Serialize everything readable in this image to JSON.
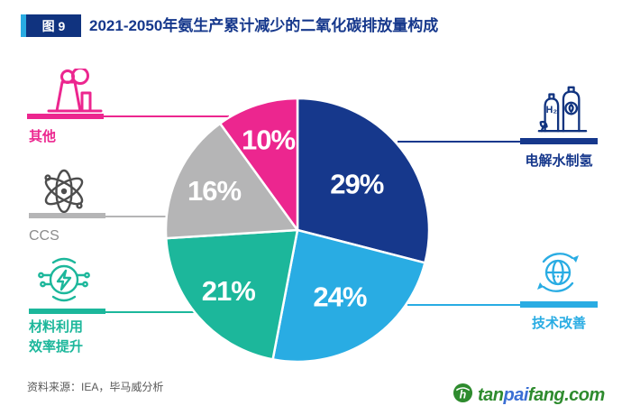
{
  "colors": {
    "navy": "#16388C",
    "navy-dark": "#10337F",
    "lightblue": "#29ACE3",
    "teal": "#1CB79B",
    "gray": "#B5B5B6",
    "gray-icon": "#4D4D4D",
    "gray-label": "#8C8C8C",
    "pink": "#EC268F",
    "accent": "#29ABE2",
    "source": "#595959",
    "logo-green": "#2E8B2E",
    "logo-blue": "#3B6FD4"
  },
  "header": {
    "badge": "图 9",
    "title": "2021-2050年氨生产累计减少的二氧化碳排放量构成"
  },
  "chart_data": {
    "type": "pie",
    "title": "2021-2050年氨生产累计减少的二氧化碳排放量构成",
    "units": "%",
    "start": "top",
    "clockwise": true,
    "legend_position": "sides",
    "slices": [
      {
        "id": "electrolysis",
        "label": "电解水制氢",
        "value": 29,
        "display": "29%",
        "color": "#16388C",
        "label_r": 0.57
      },
      {
        "id": "tech-improve",
        "label": "技术改善",
        "value": 24,
        "display": "24%",
        "color": "#29ACE3",
        "label_r": 0.6
      },
      {
        "id": "material-efficiency",
        "label": "材料利用效率提升",
        "value": 21,
        "display": "21%",
        "color": "#1CB79B",
        "label_r": 0.7
      },
      {
        "id": "ccs",
        "label": "CCS",
        "value": 16,
        "display": "16%",
        "color": "#B5B5B6",
        "label_r": 0.7
      },
      {
        "id": "other",
        "label": "其他",
        "value": 10,
        "display": "10%",
        "color": "#EC268F",
        "label_r": 0.72
      }
    ]
  },
  "legend": {
    "left": [
      {
        "icon": "factory-icon",
        "label": "其他"
      },
      {
        "icon": "atom-icon",
        "label": "CCS"
      },
      {
        "icon": "smart-energy-icon",
        "label": "材料利用\n效率提升"
      }
    ],
    "right": [
      {
        "icon": "hydrogen-cylinders-icon",
        "label": "电解水制氢"
      },
      {
        "icon": "globe-recycle-icon",
        "label": "技术改善"
      }
    ]
  },
  "icon_text": {
    "h2": "H₂"
  },
  "footer": {
    "source": "资料来源：IEA，毕马威分析"
  },
  "logo": {
    "parts": [
      {
        "text": "tan"
      },
      {
        "text": "pai"
      },
      {
        "text": "fang.com"
      }
    ]
  }
}
